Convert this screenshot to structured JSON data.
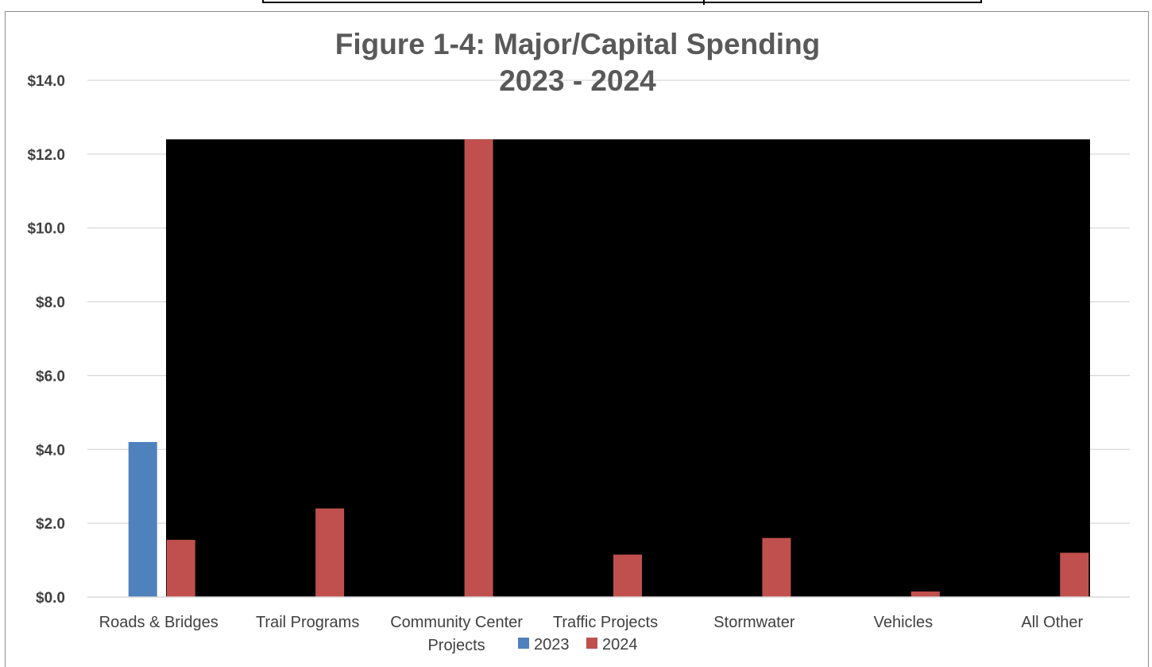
{
  "chart_data": {
    "type": "bar",
    "title": [
      "Figure 1-4: Major/Capital Spending",
      "2023 - 2024"
    ],
    "categories": [
      [
        "Roads & Bridges"
      ],
      [
        "Trail Programs"
      ],
      [
        "Community Center",
        "Projects"
      ],
      [
        "Traffic Projects"
      ],
      [
        "Stormwater"
      ],
      [
        "Vehicles"
      ],
      [
        "All Other"
      ]
    ],
    "series": [
      {
        "name": "2023",
        "color": "#4f81bd",
        "values": [
          4.2,
          0,
          0,
          0,
          0,
          0,
          0
        ]
      },
      {
        "name": "2024",
        "color": "#c0504d",
        "values": [
          1.55,
          2.4,
          12.4,
          1.15,
          1.6,
          0.15,
          1.2
        ]
      }
    ],
    "ylim": [
      0,
      14
    ],
    "yticks": [
      "$0.0",
      "$2.0",
      "$4.0",
      "$6.0",
      "$8.0",
      "$10.0",
      "$12.0",
      "$14.0"
    ],
    "ytick_values": [
      0,
      2,
      4,
      6,
      8,
      10,
      12,
      14
    ],
    "grid": true,
    "legend_position": "bottom"
  }
}
